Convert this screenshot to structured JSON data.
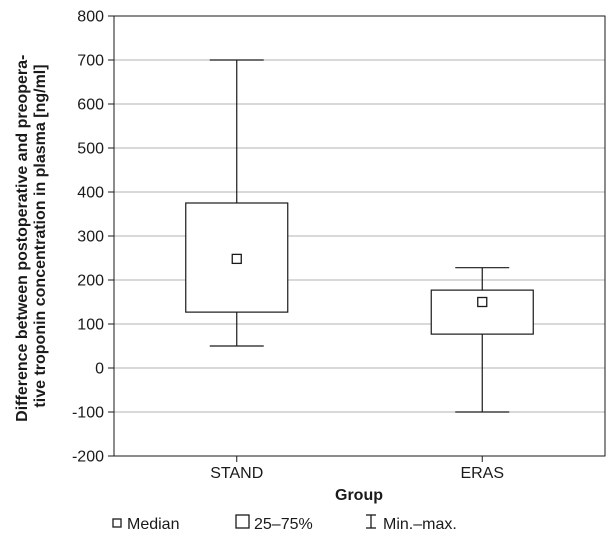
{
  "chart_data": {
    "type": "boxplot",
    "xlabel": "Group",
    "ylabel_lines": [
      "Difference between postoperative and preopera-",
      "tive troponin concentration in plasma [ng/ml]"
    ],
    "ylim": [
      -200,
      800
    ],
    "yticks": [
      800,
      700,
      600,
      500,
      400,
      300,
      200,
      100,
      0,
      -100,
      -200
    ],
    "ytick_labels": [
      "800",
      "700",
      "600",
      "500",
      "400",
      "300",
      "200",
      "100",
      "0",
      "-100",
      "-200"
    ],
    "grid": true,
    "categories": [
      "STAND",
      "ERAS"
    ],
    "boxes": [
      {
        "group": "STAND",
        "median": 248,
        "q1": 127,
        "q3": 375,
        "min": 50,
        "max": 700
      },
      {
        "group": "ERAS",
        "median": 150,
        "q1": 77,
        "q3": 177,
        "min": -100,
        "max": 228
      }
    ],
    "legend": {
      "placement": "bottom",
      "items": [
        {
          "symbol": "small-square",
          "label": "Median"
        },
        {
          "symbol": "box",
          "label": "25–75%"
        },
        {
          "symbol": "whisker",
          "label": "Min.–max."
        }
      ]
    },
    "colors": {
      "line": "#1a1a1a",
      "grid": "#b3b3b3",
      "box_fill": "#ffffff"
    }
  }
}
